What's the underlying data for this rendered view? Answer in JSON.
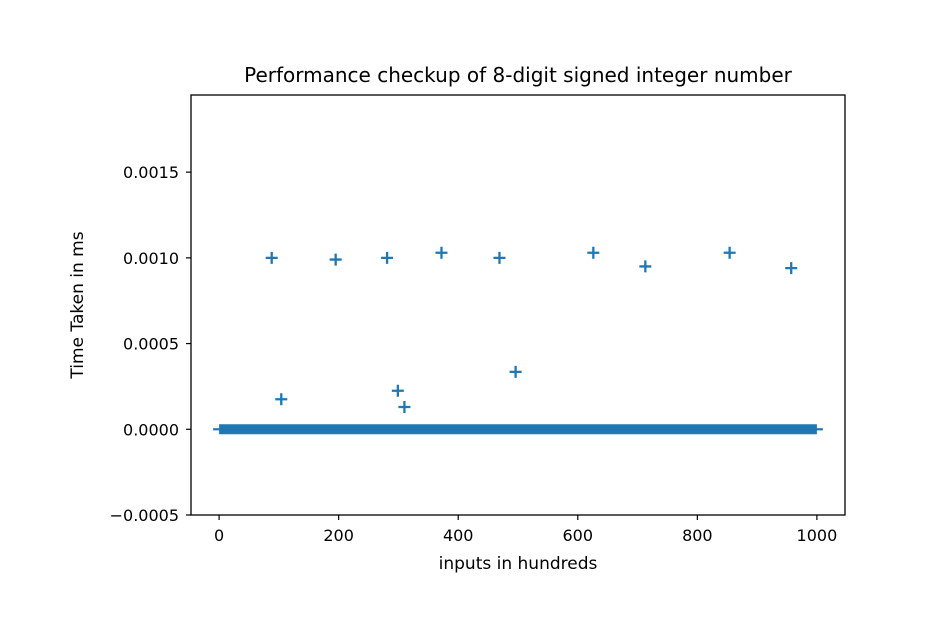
{
  "chart_data": {
    "type": "scatter",
    "title": "Performance checkup of 8-digit signed integer number",
    "xlabel": "inputs in hundreds",
    "ylabel": "Time Taken in ms",
    "xlim": [
      -47,
      1047
    ],
    "ylim": [
      -0.0005,
      0.00195
    ],
    "x_ticks": [
      0,
      200,
      400,
      600,
      800,
      1000
    ],
    "x_tick_labels": [
      "0",
      "200",
      "400",
      "600",
      "800",
      "1000"
    ],
    "y_ticks": [
      -0.0005,
      0.0,
      0.0005,
      0.001,
      0.0015
    ],
    "y_tick_labels": [
      "−0.0005",
      "0.0000",
      "0.0005",
      "0.0010",
      "0.0015"
    ],
    "grid": false,
    "marker": "plus",
    "color": "#1f77b4",
    "baseline": {
      "x_from": 0,
      "x_to": 1000,
      "y": 0.0
    },
    "series": [
      {
        "x": [
          88,
          195,
          281,
          372,
          469,
          626,
          713,
          854,
          957,
          104,
          299,
          310,
          496
        ],
        "y": [
          0.001,
          0.00099,
          0.001,
          0.00103,
          0.001,
          0.00103,
          0.00095,
          0.00103,
          0.00094,
          0.000175,
          0.000225,
          0.00013,
          0.000335
        ]
      }
    ]
  }
}
